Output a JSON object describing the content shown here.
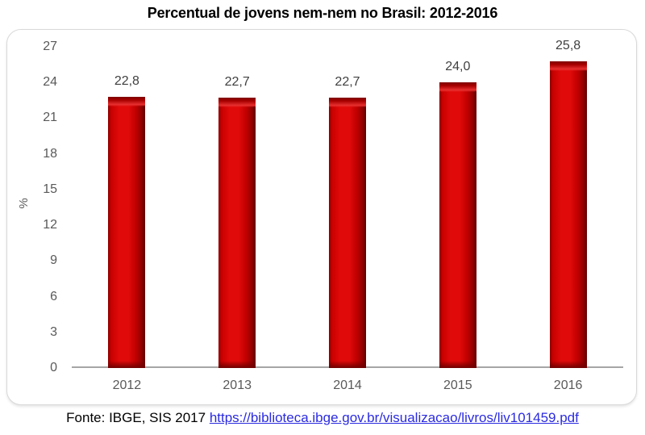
{
  "chart_data": {
    "type": "bar",
    "title": "Percentual de jovens nem-nem no Brasil: 2012-2016",
    "categories": [
      "2012",
      "2013",
      "2014",
      "2015",
      "2016"
    ],
    "values": [
      22.8,
      22.7,
      22.7,
      24.0,
      25.8
    ],
    "value_labels": [
      "22,8",
      "22,7",
      "22,7",
      "24,0",
      "25,8"
    ],
    "xlabel": "",
    "ylabel": "%",
    "ylim": [
      0,
      27
    ],
    "yticks": [
      0,
      3,
      6,
      9,
      12,
      15,
      18,
      21,
      24,
      27
    ],
    "grid": false,
    "legend": "none",
    "colors": {
      "bar": "#cc0000",
      "bar_edge_dark": "#5f0000",
      "bar_highlight": "#e00a0a",
      "tick_text": "#595959",
      "value_text": "#404040",
      "axis_line": "#a6a6a6",
      "panel_border": "#d9d9d9",
      "title_text": "#000000"
    }
  },
  "footer": {
    "source_text": "Fonte: IBGE, SIS 2017",
    "link_text": "https://biblioteca.ibge.gov.br/visualizacao/livros/liv101459.pdf",
    "link_color": "#2b2be0"
  }
}
